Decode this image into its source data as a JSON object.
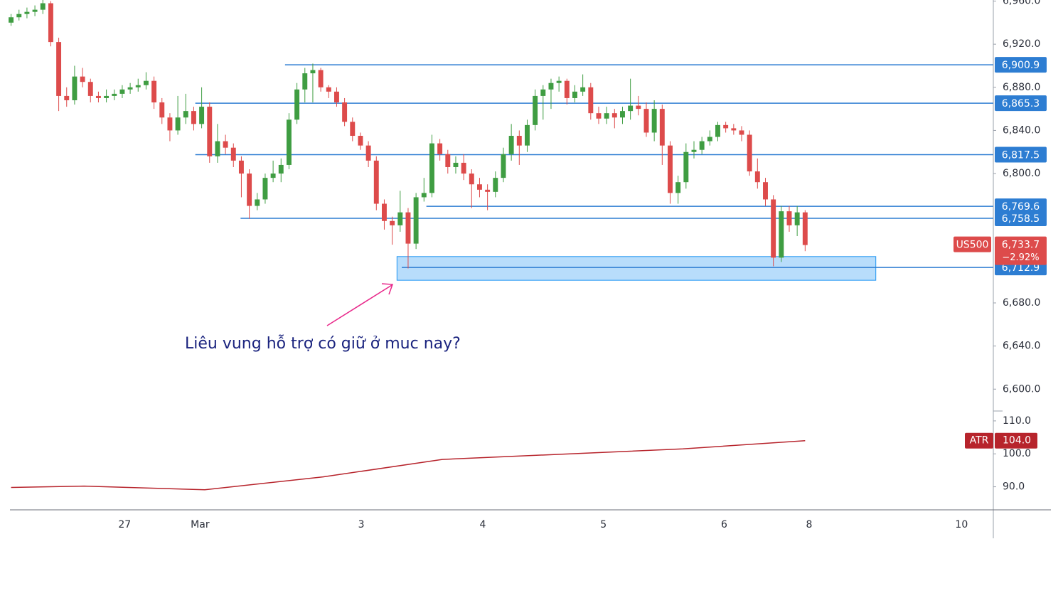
{
  "chart_data": [
    {
      "type": "candlestick",
      "symbol": "US500",
      "up_color": "#3f9d42",
      "down_color": "#dd4b4b",
      "open": [
        6940,
        6945,
        6948,
        6950,
        6952,
        6958,
        6922,
        6872,
        6868,
        6890,
        6885,
        6872,
        6870,
        6872,
        6874,
        6878,
        6880,
        6882,
        6886,
        6866,
        6852,
        6840,
        6852,
        6858,
        6846,
        6862,
        6816,
        6830,
        6824,
        6812,
        6800,
        6770,
        6776,
        6796,
        6800,
        6808,
        6850,
        6878,
        6893,
        6896,
        6880,
        6876,
        6866,
        6848,
        6835,
        6826,
        6812,
        6772,
        6756,
        6752,
        6764,
        6735,
        6778,
        6782,
        6828,
        6818,
        6806,
        6810,
        6800,
        6790,
        6785,
        6783,
        6796,
        6818,
        6835,
        6826,
        6845,
        6872,
        6878,
        6884,
        6886,
        6870,
        6876,
        6880,
        6856,
        6851,
        6856,
        6852,
        6858,
        6863,
        6860,
        6838,
        6860,
        6826,
        6782,
        6792,
        6820,
        6822,
        6830,
        6834,
        6845,
        6842,
        6840,
        6836,
        6802,
        6792,
        6776,
        6722,
        6765,
        6752,
        6764
      ],
      "high": [
        6948,
        6952,
        6954,
        6956,
        6962,
        6960,
        6926,
        6880,
        6900,
        6898,
        6888,
        6876,
        6878,
        6878,
        6882,
        6884,
        6888,
        6894,
        6890,
        6870,
        6856,
        6872,
        6874,
        6862,
        6880,
        6866,
        6846,
        6836,
        6828,
        6816,
        6804,
        6782,
        6800,
        6812,
        6814,
        6856,
        6884,
        6898,
        6902,
        6898,
        6882,
        6880,
        6870,
        6852,
        6838,
        6830,
        6816,
        6776,
        6760,
        6784,
        6768,
        6782,
        6796,
        6836,
        6832,
        6822,
        6816,
        6818,
        6804,
        6796,
        6790,
        6802,
        6824,
        6846,
        6840,
        6850,
        6878,
        6882,
        6888,
        6890,
        6888,
        6882,
        6892,
        6884,
        6862,
        6862,
        6860,
        6862,
        6888,
        6872,
        6866,
        6868,
        6864,
        6830,
        6798,
        6828,
        6830,
        6834,
        6840,
        6848,
        6848,
        6846,
        6844,
        6840,
        6814,
        6796,
        6780,
        6770,
        6770,
        6770,
        6766
      ],
      "low": [
        6937,
        6942,
        6944,
        6946,
        6948,
        6918,
        6858,
        6862,
        6864,
        6880,
        6866,
        6866,
        6866,
        6868,
        6870,
        6874,
        6876,
        6878,
        6860,
        6846,
        6830,
        6836,
        6846,
        6840,
        6842,
        6810,
        6810,
        6818,
        6806,
        6778,
        6758,
        6766,
        6772,
        6792,
        6792,
        6804,
        6846,
        6866,
        6866,
        6876,
        6870,
        6862,
        6844,
        6830,
        6822,
        6806,
        6766,
        6748,
        6734,
        6746,
        6712,
        6730,
        6774,
        6778,
        6812,
        6800,
        6800,
        6794,
        6768,
        6778,
        6766,
        6778,
        6792,
        6812,
        6808,
        6820,
        6840,
        6850,
        6860,
        6876,
        6864,
        6866,
        6872,
        6850,
        6846,
        6846,
        6842,
        6846,
        6850,
        6854,
        6834,
        6830,
        6808,
        6772,
        6772,
        6786,
        6814,
        6818,
        6826,
        6830,
        6838,
        6836,
        6830,
        6798,
        6786,
        6770,
        6714,
        6718,
        6746,
        6742,
        6728
      ],
      "close": [
        6945,
        6948,
        6950,
        6952,
        6958,
        6922,
        6872,
        6868,
        6890,
        6885,
        6872,
        6870,
        6872,
        6874,
        6878,
        6880,
        6882,
        6886,
        6866,
        6852,
        6840,
        6852,
        6858,
        6846,
        6862,
        6816,
        6830,
        6824,
        6812,
        6800,
        6770,
        6776,
        6796,
        6800,
        6808,
        6850,
        6878,
        6893,
        6896,
        6880,
        6876,
        6866,
        6848,
        6835,
        6826,
        6812,
        6772,
        6756,
        6752,
        6764,
        6735,
        6778,
        6782,
        6828,
        6818,
        6806,
        6810,
        6800,
        6790,
        6785,
        6783,
        6796,
        6818,
        6835,
        6826,
        6845,
        6872,
        6878,
        6884,
        6886,
        6870,
        6876,
        6880,
        6856,
        6851,
        6856,
        6852,
        6858,
        6863,
        6860,
        6838,
        6860,
        6826,
        6782,
        6792,
        6820,
        6822,
        6830,
        6834,
        6845,
        6842,
        6840,
        6836,
        6802,
        6792,
        6776,
        6722,
        6765,
        6752,
        6764,
        6733.7
      ],
      "last_price": {
        "value": 6733.7,
        "label": "6,733.7"
      },
      "change": {
        "value": -2.92,
        "label": "−2.92%"
      },
      "xlim": [
        -0.5,
        123.7
      ],
      "xticks": [
        {
          "value": 14.3,
          "label": "27"
        },
        {
          "value": 23.8,
          "label": "Mar"
        },
        {
          "value": 44.1,
          "label": "3"
        },
        {
          "value": 59.4,
          "label": "4"
        },
        {
          "value": 74.6,
          "label": "5"
        },
        {
          "value": 89.8,
          "label": "6"
        },
        {
          "value": 100.5,
          "label": "8"
        },
        {
          "value": 119.7,
          "label": "10"
        }
      ],
      "ylim": [
        6585,
        6961
      ],
      "yticks": [
        {
          "value": 6600,
          "label": "6,600.0"
        },
        {
          "value": 6640,
          "label": "6,640.0"
        },
        {
          "value": 6680,
          "label": "6,680.0"
        },
        {
          "value": 6800,
          "label": "6,800.0"
        },
        {
          "value": 6840,
          "label": "6,840.0"
        },
        {
          "value": 6880,
          "label": "6,880.0"
        },
        {
          "value": 6920,
          "label": "6,920.0"
        },
        {
          "value": 6960,
          "label": "6,960.0"
        }
      ],
      "level_color": "#2d7dd2",
      "levels": [
        {
          "value": 6900.9,
          "label": "6,900.9",
          "start": 34.5
        },
        {
          "value": 6865.3,
          "label": "6,865.3",
          "start": 23.2
        },
        {
          "value": 6817.5,
          "label": "6,817.5",
          "start": 23.2
        },
        {
          "value": 6769.6,
          "label": "6,769.6",
          "start": 52.3
        },
        {
          "value": 6758.5,
          "label": "6,758.5",
          "start": 28.9
        },
        {
          "value": 6712.9,
          "label": "6,712.9",
          "start": 49.2
        }
      ],
      "zone": {
        "top": 6723,
        "bottom": 6701,
        "start": 48.6,
        "end": 108.9
      },
      "annotation": "Liêu vung hỗ trợ có giữ ở muc nay?"
    },
    {
      "type": "line",
      "name": "ATR",
      "color": "#b7242c",
      "x": [
        0,
        9.2,
        24.4,
        39.3,
        54.3,
        84.6,
        100
      ],
      "values": [
        89.8,
        90.2,
        89.1,
        93,
        98.3,
        101.5,
        104
      ],
      "value_labels": [
        null,
        null,
        null,
        null,
        null,
        null,
        "104.0"
      ],
      "ylim": [
        83,
        113
      ],
      "yticks": [
        {
          "value": 90,
          "label": "90.0"
        },
        {
          "value": 100,
          "label": "100.0"
        },
        {
          "value": 110,
          "label": "110.0"
        }
      ]
    }
  ]
}
